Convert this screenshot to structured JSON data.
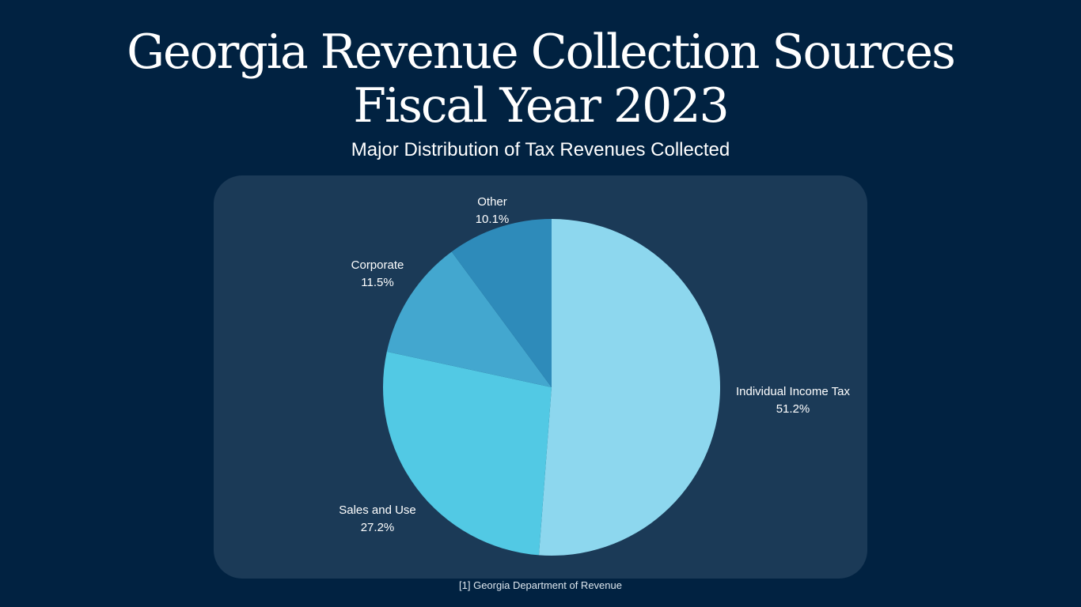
{
  "title_line1": "Georgia Revenue Collection Sources",
  "title_line2": "Fiscal Year 2023",
  "source": "[1] Georgia Department of Revenue",
  "chart_data": {
    "type": "pie",
    "title": "Georgia Revenue Collection Sources Fiscal Year 2023",
    "subtitle": "Major Distribution of Tax Revenues Collected",
    "start": "top",
    "direction": "clockwise",
    "slices": [
      {
        "label": "Individual Income Tax",
        "value": 51.2,
        "display": "51.2%",
        "color": "#8dd7ee"
      },
      {
        "label": "Sales and Use",
        "value": 27.2,
        "display": "27.2%",
        "color": "#52c9e4"
      },
      {
        "label": "Corporate",
        "value": 11.5,
        "display": "11.5%",
        "color": "#43a7cf"
      },
      {
        "label": "Other",
        "value": 10.1,
        "display": "10.1%",
        "color": "#2e8bba"
      }
    ]
  }
}
